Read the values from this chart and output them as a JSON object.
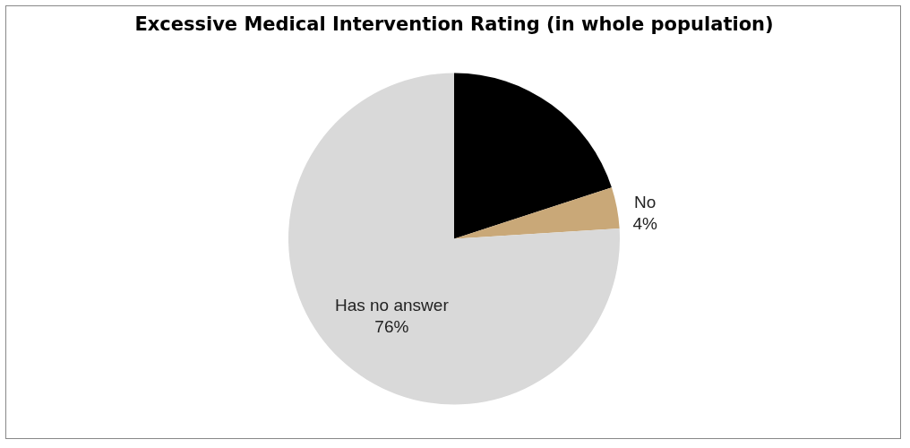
{
  "chart_data": {
    "type": "pie",
    "title": "Excessive Medical Intervention Rating (in whole population)",
    "categories": [
      null,
      "No",
      "Has no answer"
    ],
    "values": [
      20,
      4,
      76
    ],
    "value_labels": [
      null,
      "4%",
      "76%"
    ],
    "colors": [
      "#000000",
      "#c9a878",
      "#d9d9d9"
    ],
    "legend": false
  }
}
